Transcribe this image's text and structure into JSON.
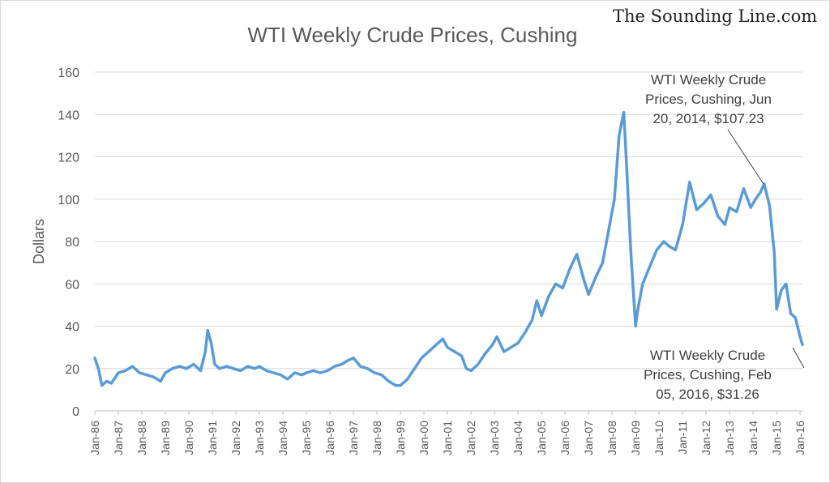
{
  "watermark": "The Sounding Line.com",
  "chart_data": {
    "type": "line",
    "title": "WTI Weekly Crude Prices, Cushing",
    "xlabel": "",
    "ylabel": "Dollars",
    "ylim": [
      0,
      160
    ],
    "yticks": [
      0,
      20,
      40,
      60,
      80,
      100,
      120,
      140,
      160
    ],
    "grid": true,
    "legend": "none",
    "line_color": "#5b9bd5",
    "categories": [
      "Jan-86",
      "Jan-87",
      "Jan-88",
      "Jan-89",
      "Jan-90",
      "Jan-91",
      "Jan-92",
      "Jan-93",
      "Jan-94",
      "Jan-95",
      "Jan-96",
      "Jan-97",
      "Jan-98",
      "Jan-99",
      "Jan-00",
      "Jan-01",
      "Jan-02",
      "Jan-03",
      "Jan-04",
      "Jan-05",
      "Jan-06",
      "Jan-07",
      "Jan-08",
      "Jan-09",
      "Jan-10",
      "Jan-11",
      "Jan-12",
      "Jan-13",
      "Jan-14",
      "Jan-15",
      "Jan-16"
    ],
    "series": [
      {
        "x": [
          1986.0,
          1986.15,
          1986.3,
          1986.5,
          1986.7,
          1987.0,
          1987.3,
          1987.6,
          1987.9,
          1988.2,
          1988.5,
          1988.8,
          1989.0,
          1989.3,
          1989.6,
          1989.9,
          1990.2,
          1990.5,
          1990.7,
          1990.8,
          1990.95,
          1991.1,
          1991.3,
          1991.6,
          1991.9,
          1992.2,
          1992.5,
          1992.8,
          1993.0,
          1993.3,
          1993.6,
          1993.9,
          1994.2,
          1994.5,
          1994.8,
          1995.0,
          1995.3,
          1995.6,
          1995.9,
          1996.2,
          1996.5,
          1996.8,
          1997.0,
          1997.3,
          1997.6,
          1997.9,
          1998.2,
          1998.5,
          1998.8,
          1999.0,
          1999.3,
          1999.6,
          1999.9,
          2000.2,
          2000.5,
          2000.8,
          2001.0,
          2001.3,
          2001.6,
          2001.8,
          2002.0,
          2002.3,
          2002.6,
          2002.9,
          2003.1,
          2003.4,
          2003.7,
          2004.0,
          2004.3,
          2004.6,
          2004.8,
          2005.0,
          2005.3,
          2005.6,
          2005.9,
          2006.2,
          2006.5,
          2006.8,
          2007.0,
          2007.3,
          2007.6,
          2007.9,
          2008.1,
          2008.3,
          2008.5,
          2008.6,
          2008.8,
          2009.0,
          2009.1,
          2009.3,
          2009.6,
          2009.9,
          2010.2,
          2010.4,
          2010.7,
          2011.0,
          2011.3,
          2011.6,
          2011.9,
          2012.2,
          2012.5,
          2012.8,
          2013.0,
          2013.3,
          2013.6,
          2013.9,
          2014.1,
          2014.3,
          2014.47,
          2014.7,
          2014.9,
          2015.0,
          2015.2,
          2015.4,
          2015.6,
          2015.8,
          2016.0,
          2016.1
        ],
        "values": [
          25,
          20,
          12,
          14,
          13,
          18,
          19,
          21,
          18,
          17,
          16,
          14,
          18,
          20,
          21,
          20,
          22,
          19,
          28,
          38,
          32,
          22,
          20,
          21,
          20,
          19,
          21,
          20,
          21,
          19,
          18,
          17,
          15,
          18,
          17,
          18,
          19,
          18,
          19,
          21,
          22,
          24,
          25,
          21,
          20,
          18,
          17,
          14,
          12,
          12,
          15,
          20,
          25,
          28,
          31,
          34,
          30,
          28,
          26,
          20,
          19,
          22,
          27,
          31,
          35,
          28,
          30,
          32,
          37,
          43,
          52,
          45,
          54,
          60,
          58,
          67,
          74,
          62,
          55,
          63,
          70,
          88,
          100,
          130,
          141,
          120,
          75,
          40,
          48,
          60,
          68,
          76,
          80,
          78,
          76,
          88,
          108,
          95,
          98,
          102,
          92,
          88,
          96,
          94,
          105,
          96,
          100,
          103,
          107.23,
          97,
          75,
          48,
          57,
          60,
          46,
          44,
          35,
          31.26
        ],
        "name": ""
      }
    ],
    "annotations": [
      {
        "lines": [
          "WTI Weekly Crude",
          "Prices, Cushing, Jun",
          "20, 2014, $107.23"
        ]
      },
      {
        "lines": [
          "WTI Weekly Crude",
          "Prices, Cushing, Feb",
          "05, 2016, $31.26"
        ]
      }
    ]
  }
}
